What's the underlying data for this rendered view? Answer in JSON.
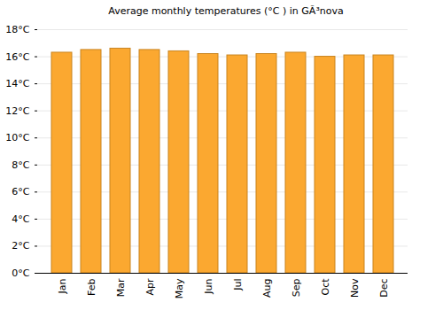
{
  "chart_data": {
    "type": "bar",
    "title": "Average monthly temperatures (°C ) in GÃ³nova",
    "categories": [
      "Jan",
      "Feb",
      "Mar",
      "Apr",
      "May",
      "Jun",
      "Jul",
      "Aug",
      "Sep",
      "Oct",
      "Nov",
      "Dec"
    ],
    "values": [
      16.3,
      16.5,
      16.6,
      16.5,
      16.4,
      16.2,
      16.1,
      16.2,
      16.3,
      16.0,
      16.1,
      16.1
    ],
    "color": "#fba830",
    "ylim": [
      0,
      18
    ],
    "yticks": [
      {
        "value": 0,
        "label": "0°C"
      },
      {
        "value": 2,
        "label": "2°C"
      },
      {
        "value": 4,
        "label": "4°C"
      },
      {
        "value": 6,
        "label": "6°C"
      },
      {
        "value": 8,
        "label": "8°C"
      },
      {
        "value": 10,
        "label": "10°C"
      },
      {
        "value": 12,
        "label": "12°C"
      },
      {
        "value": 14,
        "label": "14°C"
      },
      {
        "value": 16,
        "label": "16°C"
      },
      {
        "value": 18,
        "label": "18°C"
      }
    ],
    "grid": true
  }
}
